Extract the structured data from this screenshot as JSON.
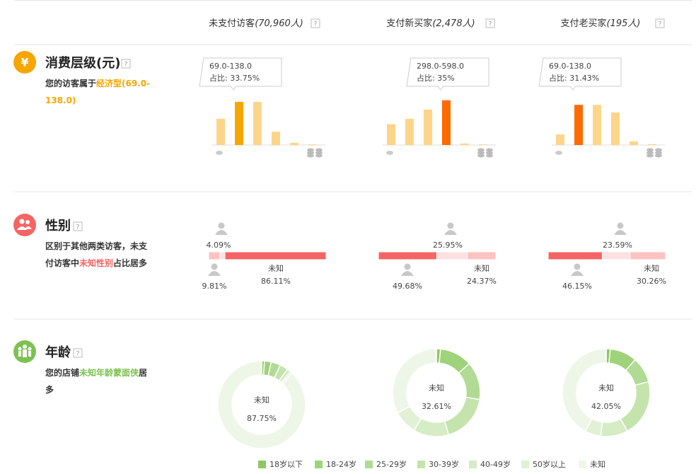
{
  "help_icon": "?",
  "columns": [
    {
      "name": "未支付访客",
      "count": "(70,960人)"
    },
    {
      "name": "支付新买家",
      "count": "(2,478人)"
    },
    {
      "name": "支付老买家",
      "count": "(195人)"
    }
  ],
  "spending": {
    "icon": "¥",
    "title": "消费层级(元)",
    "note": [
      "您的访客属于",
      "经济型(69.0-",
      "138.0)"
    ],
    "bar_color": "#fdd58a",
    "columns": [
      {
        "values": [
          20.5,
          33.75,
          33.8,
          10.5,
          1.7,
          0.5
        ],
        "highlight": 1,
        "highlight_color": "#f7a600",
        "range": "69.0-138.0",
        "share": "占比: 33.75%"
      },
      {
        "values": [
          16.3,
          20.5,
          27.8,
          35,
          1.2,
          0.5
        ],
        "highlight": 3,
        "highlight_color": "#ff6a00",
        "range": "298.0-598.0",
        "share": "占比: 35%"
      },
      {
        "values": [
          8.3,
          31.43,
          31.4,
          25.4,
          2.8,
          0.7
        ],
        "highlight": 1,
        "highlight_color": "#ff6a00",
        "range": "69.0-138.0",
        "share": "占比: 31.43%"
      }
    ]
  },
  "gender": {
    "title": "性别",
    "note": [
      "区别于其他两类访客，未支",
      "付访客中",
      "未知性别",
      "占比居多"
    ],
    "unknown_label": "未知",
    "colors": [
      "#fdc3c3",
      "#fde0e0",
      "#fdc3c3"
    ],
    "highlight_color": "#f56464",
    "columns": [
      {
        "values": [
          9.81,
          4.09,
          86.11
        ],
        "value_labels": [
          "9.81%",
          "4.09%",
          "86.11%"
        ],
        "highlight": 2
      },
      {
        "values": [
          49.68,
          25.95,
          24.37
        ],
        "value_labels": [
          "49.68%",
          "25.95%",
          "24.37%"
        ],
        "highlight": 0
      },
      {
        "values": [
          46.15,
          23.59,
          30.26
        ],
        "value_labels": [
          "46.15%",
          "23.59%",
          "30.26%"
        ],
        "highlight": 0
      }
    ]
  },
  "age": {
    "title": "年龄",
    "note": [
      "您的店铺",
      "未知年龄蒙面侠",
      "居",
      "多"
    ],
    "center_label": "未知",
    "categories": [
      "18岁以下",
      "18-24岁",
      "25-29岁",
      "30-39岁",
      "40-49岁",
      "50岁以上",
      "未知"
    ],
    "colors": [
      "#8dc862",
      "#9fd37a",
      "#b1db94",
      "#c4e4ac",
      "#d5ecc4",
      "#e2f1d6",
      "#eef6e8"
    ],
    "columns": [
      {
        "values": [
          1,
          2.5,
          3.5,
          3,
          1.5,
          0.75,
          87.75
        ],
        "center_value": "87.75%"
      },
      {
        "values": [
          1.5,
          12,
          14,
          18,
          13,
          8.89,
          32.61
        ],
        "center_value": "32.61%"
      },
      {
        "values": [
          1.5,
          10,
          9.5,
          21,
          10,
          5.95,
          42.05
        ],
        "center_value": "42.05%"
      }
    ]
  }
}
